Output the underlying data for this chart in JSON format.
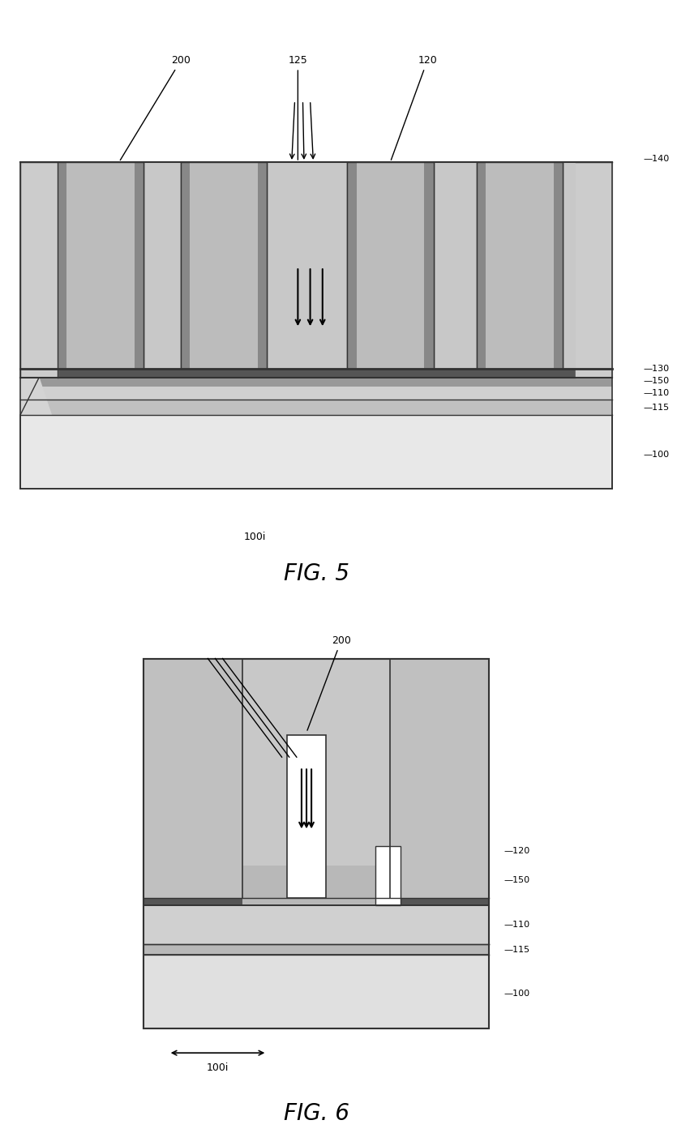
{
  "bg_color": "#ffffff",
  "fig_width": 12.4,
  "fig_height": 14.0,
  "colors": {
    "substrate": "#d4d4d4",
    "layer110": "#c8c8c8",
    "layer115": "#b8b8b8",
    "layer130": "#a0a0a0",
    "layer140_top": "#c0c0c0",
    "pillar_light": "#c8c8c8",
    "pillar_dark": "#909090",
    "dark_strip": "#707070",
    "white": "#ffffff",
    "black": "#000000",
    "outline": "#333333",
    "fin_light": "#d8d8d8",
    "layer150": "#b0b0b0",
    "fig6_bg": "#d0d0d0",
    "fig6_white": "#f0f0f0"
  },
  "fig5": {
    "title": "FIG. 5",
    "label_100i": "100i",
    "labels": [
      "200",
      "125",
      "120",
      "140",
      "130",
      "150",
      "110",
      "115",
      "100"
    ]
  },
  "fig6": {
    "title": "FIG. 6",
    "label_100i": "100i",
    "labels": [
      "200",
      "120",
      "150",
      "110",
      "115",
      "100"
    ]
  }
}
